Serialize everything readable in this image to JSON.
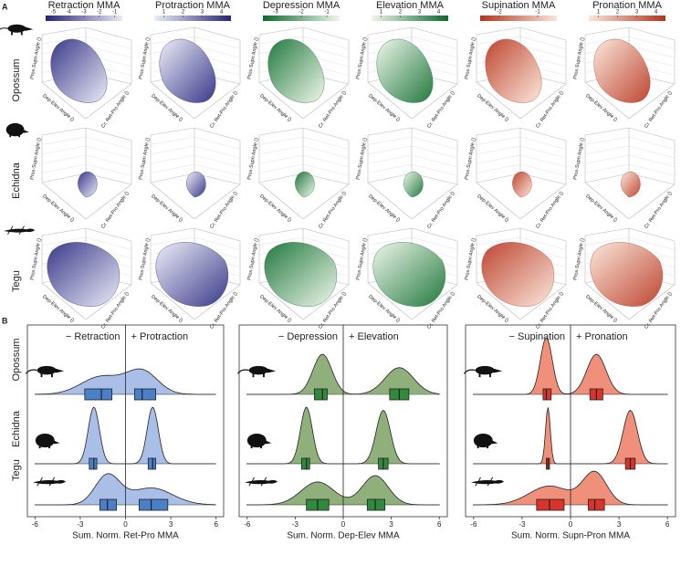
{
  "panel_a": {
    "label": "A",
    "rows": [
      "Opossum",
      "Echidna",
      "Tegu"
    ],
    "axis_labels": [
      "Prox-Supn Angle ()",
      "Dep-Elev Angle ()",
      "Cr. Ret-Pro Angle ()"
    ],
    "columns": [
      {
        "title": "Retraction MMA",
        "lim": [
          -5.5,
          -0.5
        ],
        "ticks": [
          -5,
          -4,
          -3,
          -2,
          -1
        ],
        "colors": [
          "#25247e",
          "#e8eaf6"
        ]
      },
      {
        "title": "Protraction MMA",
        "lim": [
          0.5,
          4.5
        ],
        "ticks": [
          1,
          2,
          3,
          4
        ],
        "colors": [
          "#eceef8",
          "#25247e"
        ]
      },
      {
        "title": "Depression MMA",
        "lim": [
          -3.5,
          -0.5
        ],
        "ticks": [
          -3,
          -2,
          -1
        ],
        "colors": [
          "#0b6b2a",
          "#eef7ea"
        ]
      },
      {
        "title": "Elevation MMA",
        "lim": [
          0.5,
          4.5
        ],
        "ticks": [
          1,
          2,
          3,
          4
        ],
        "colors": [
          "#eef7ea",
          "#0b6b2a"
        ]
      },
      {
        "title": "Supination MMA",
        "lim": [
          -2.5,
          -0.5
        ],
        "ticks": [
          -2,
          -1
        ],
        "colors": [
          "#b8321c",
          "#fbe6d8"
        ]
      },
      {
        "title": "Pronation MMA",
        "lim": [
          0.5,
          4.5
        ],
        "ticks": [
          1,
          2,
          3,
          4
        ],
        "colors": [
          "#fbe6d8",
          "#b8321c"
        ]
      }
    ]
  },
  "panel_b": {
    "label": "B",
    "rows": [
      "Opossum",
      "Echidna",
      "Tegu"
    ],
    "charts": [
      {
        "type": "ridgeline",
        "neg_label": "− Retraction",
        "pos_label": "+ Protraction",
        "xlabel": "Sum. Norm. Ret-Pro MMA",
        "fill": "#a9bfe8",
        "box_color": "#4a80c8",
        "xlim": [
          -6.5,
          6.5
        ],
        "xticks": [
          -6,
          -3,
          0,
          3,
          6
        ],
        "series": [
          {
            "negative": [
              -2.7,
              -1.6,
              -0.9
            ],
            "positive": [
              0.6,
              1.1,
              2.0
            ]
          },
          {
            "negative": [
              -2.4,
              -2.1,
              -1.9
            ],
            "positive": [
              1.5,
              1.8,
              2.0
            ]
          },
          {
            "negative": [
              -1.7,
              -1.2,
              -0.6
            ],
            "positive": [
              0.9,
              1.7,
              2.8
            ]
          }
        ]
      },
      {
        "type": "ridgeline",
        "neg_label": "− Depression",
        "pos_label": "+ Elevation",
        "xlabel": "Sum. Norm. Dep-Elev MMA",
        "fill": "#8fb07a",
        "box_color": "#2f8a3c",
        "xlim": [
          -6.5,
          6.5
        ],
        "xticks": [
          -6,
          -3,
          0,
          3,
          6
        ],
        "series": [
          {
            "negative": [
              -1.8,
              -1.3,
              -1.0
            ],
            "positive": [
              2.9,
              3.5,
              4.1
            ]
          },
          {
            "negative": [
              -2.6,
              -2.3,
              -2.1
            ],
            "positive": [
              2.2,
              2.5,
              2.8
            ]
          },
          {
            "negative": [
              -2.3,
              -1.6,
              -0.9
            ],
            "positive": [
              1.5,
              2.0,
              2.6
            ]
          }
        ]
      },
      {
        "type": "ridgeline",
        "neg_label": "− Supination",
        "pos_label": "+ Pronation",
        "xlabel": "Sum. Norm. Supn-Pron MMA",
        "fill": "#f0907a",
        "box_color": "#d9342b",
        "xlim": [
          -6.5,
          6.5
        ],
        "xticks": [
          -6,
          -3,
          0,
          3,
          6
        ],
        "series": [
          {
            "negative": [
              -1.7,
              -1.5,
              -1.2
            ],
            "positive": [
              1.2,
              1.6,
              2.0
            ]
          },
          {
            "negative": [
              -1.5,
              -1.4,
              -1.3
            ],
            "positive": [
              3.4,
              3.7,
              4.0
            ]
          },
          {
            "negative": [
              -2.1,
              -1.3,
              -0.4
            ],
            "positive": [
              1.1,
              1.5,
              2.1
            ]
          }
        ]
      }
    ]
  }
}
